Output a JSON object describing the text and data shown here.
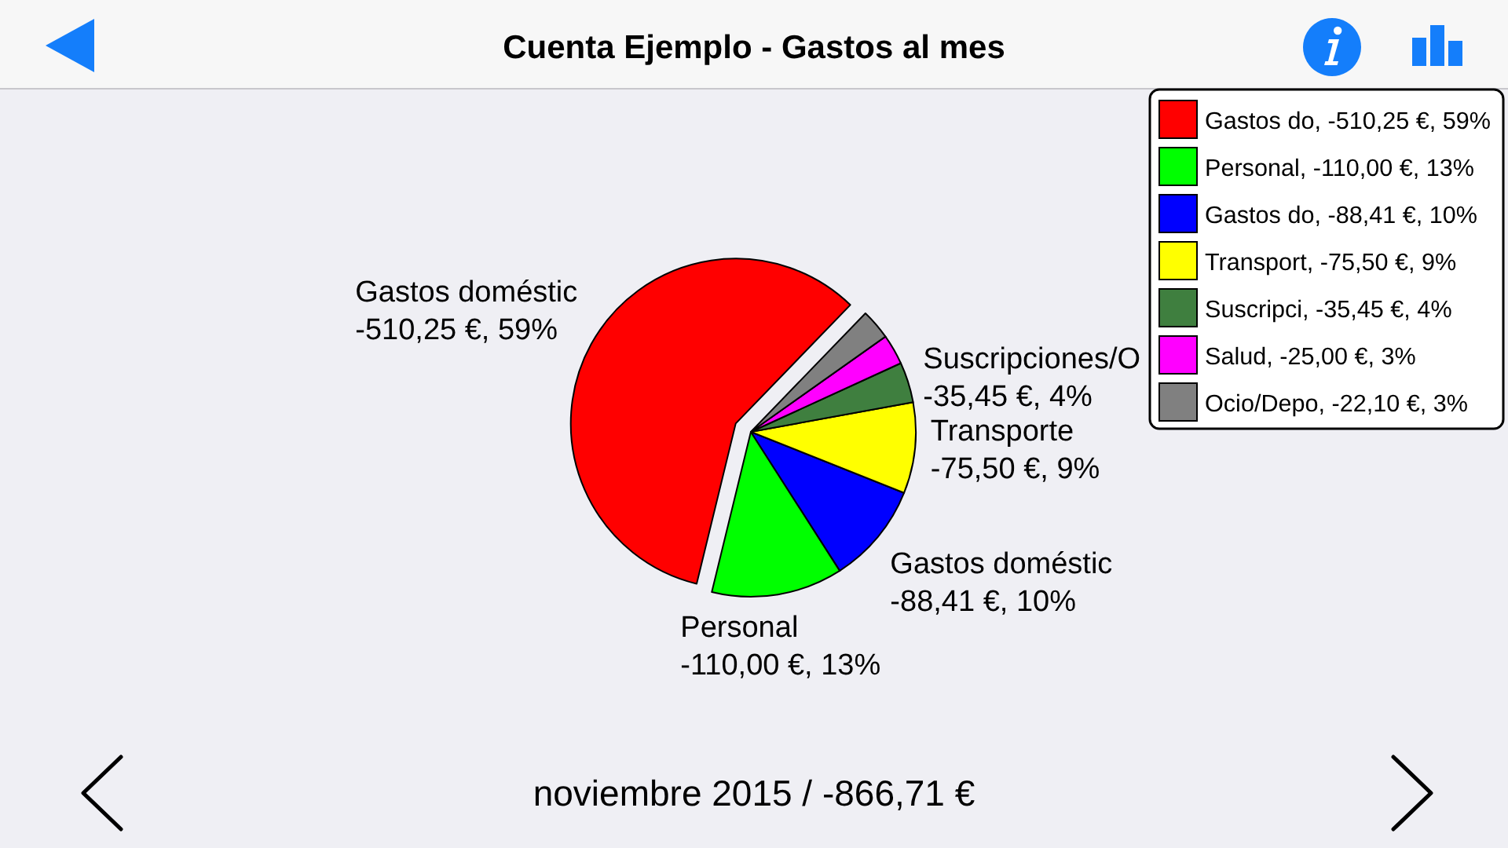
{
  "chart_data": {
    "type": "pie",
    "title": "Cuenta Ejemplo - Gastos al mes",
    "categories": [
      "Gastos do, -510,25 €, 59%",
      "Personal, -110,00 €, 13%",
      "Gastos do, -88,41 €, 10%",
      "Transport, -75,50 €, 9%",
      "Suscripci, -35,45 €, 4%",
      "Salud, -25,00 €, 3%",
      "Ocio/Depo, -22,10 €, 3%"
    ],
    "values": [
      59,
      13,
      10,
      9,
      4,
      3,
      3
    ],
    "colors": [
      "#ff0000",
      "#00ff00",
      "#0000ff",
      "#ffff00",
      "#3f7f3f",
      "#ff00ff",
      "#808080"
    ],
    "value_labels": [
      "Gastos doméstic\n-510,25 €, 59%",
      "Personal\n-110,00 €, 13%",
      "Gastos doméstic\n-88,41 €, 10%",
      "Transporte\n-75,50 €, 9%",
      "Suscripciones/O\n-35,45 €, 4%",
      null,
      null
    ],
    "legend": "top right",
    "annotations": [
      "noviembre 2015 / -866,71 €"
    ]
  }
}
